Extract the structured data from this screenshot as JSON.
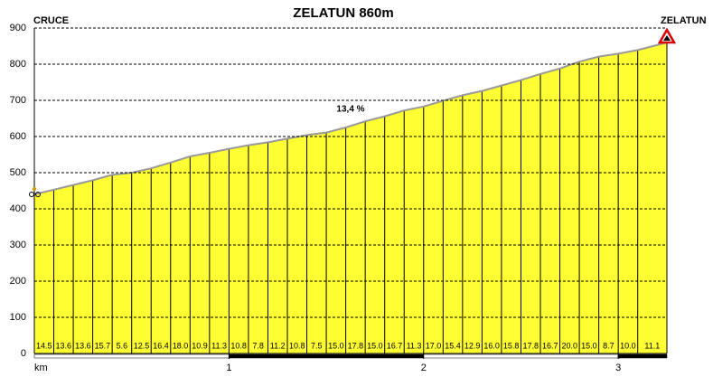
{
  "chart_data": {
    "type": "area",
    "title": "ZELATUN 860m",
    "start_label": "CRUCE",
    "end_label": "ZELATUN",
    "annotation": "13,4 %",
    "x_label": "km",
    "x": [
      0,
      0.1,
      0.2,
      0.3,
      0.4,
      0.5,
      0.6,
      0.7,
      0.8,
      0.9,
      1.0,
      1.1,
      1.2,
      1.3,
      1.4,
      1.5,
      1.6,
      1.7,
      1.8,
      1.9,
      2.0,
      2.1,
      2.2,
      2.3,
      2.4,
      2.5,
      2.6,
      2.7,
      2.8,
      2.9,
      3.0,
      3.1,
      3.25
    ],
    "values": [
      440,
      453,
      466,
      479,
      494,
      500,
      512,
      528,
      545,
      555,
      566,
      576,
      584,
      594,
      604,
      611,
      625,
      642,
      656,
      672,
      683,
      699,
      714,
      726,
      741,
      756,
      773,
      788,
      807,
      821,
      829,
      839,
      860
    ],
    "grades": [
      14.5,
      13.6,
      13.6,
      15.7,
      5.6,
      12.5,
      16.4,
      18.0,
      10.9,
      11.3,
      10.8,
      7.8,
      11.2,
      10.8,
      7.5,
      15.0,
      17.8,
      15.0,
      16.7,
      11.3,
      17.0,
      15.4,
      12.9,
      16.0,
      15.8,
      17.8,
      16.7,
      20.0,
      15.0,
      8.7,
      10.0,
      11.1
    ],
    "grade_labels": [
      "14.5",
      "13.6",
      "13.6",
      "15.7",
      "5.6",
      "12.5",
      "16.4",
      "18.0",
      "10.9",
      "11.3",
      "10.8",
      "7.8",
      "11.2",
      "10.8",
      "7.5",
      "15.0",
      "17.8",
      "15.0",
      "16.7",
      "11.3",
      "17.0",
      "15.4",
      "12.9",
      "16.0",
      "15.8",
      "17.8",
      "16.7",
      "20.0",
      "15.0",
      "8.7",
      "10.0",
      "11.1"
    ],
    "color": "#ffff33",
    "xlim": [
      0,
      3.25
    ],
    "xticks": [
      1,
      2,
      3
    ],
    "ylim": [
      0,
      900
    ],
    "yticks": [
      0,
      100,
      200,
      300,
      400,
      500,
      600,
      700,
      800,
      900
    ],
    "grid": true
  }
}
